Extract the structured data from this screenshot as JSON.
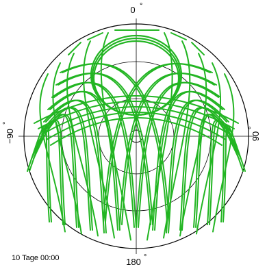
{
  "plot": {
    "track_color": "#22b522",
    "grid_color": "#000000",
    "labels": {
      "top": "0",
      "bottom": "180",
      "left": "−90",
      "right": "90",
      "degree": "°"
    },
    "caption": "10 Tage 00:00"
  }
}
